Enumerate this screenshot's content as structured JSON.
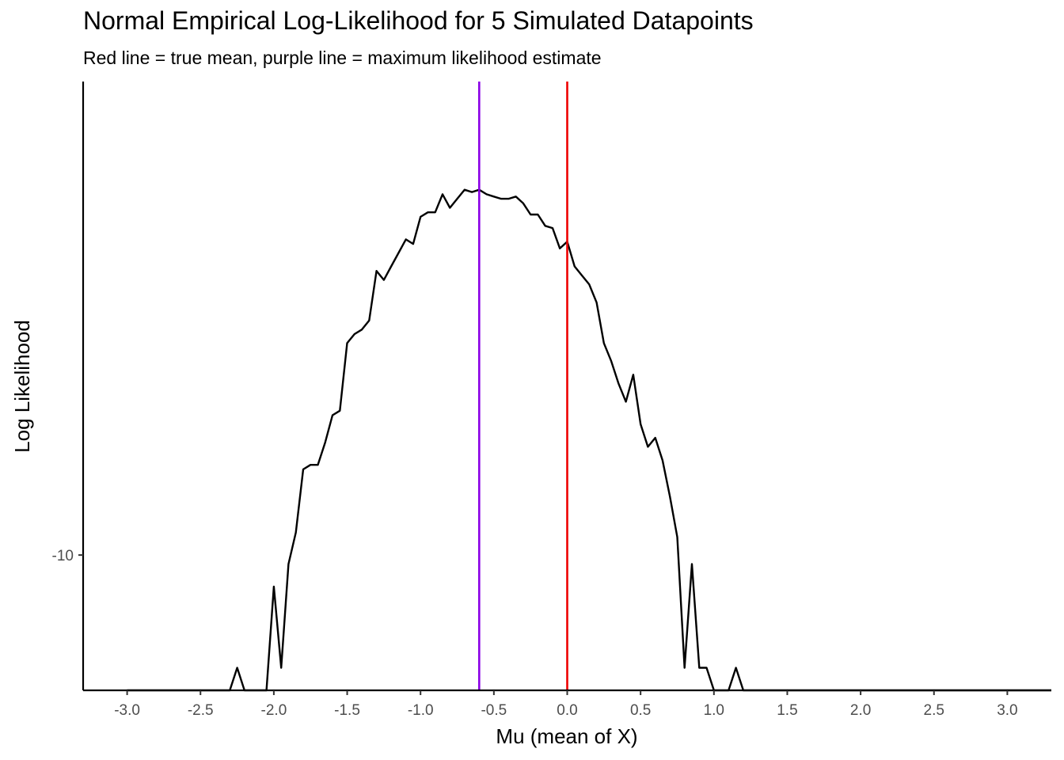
{
  "chart_data": {
    "type": "line",
    "title": "Normal Empirical Log-Likelihood for 5 Simulated Datapoints",
    "subtitle": "Red line = true mean, purple line = maximum likelihood estimate",
    "xlabel": "Mu (mean of X)",
    "ylabel": "Log Likelihood",
    "xlim": [
      -3.3,
      3.3
    ],
    "ylim": [
      -10.3,
      -8.95
    ],
    "x_ticks": [
      "-3.0",
      "-2.5",
      "-2.0",
      "-1.5",
      "-1.0",
      "-0.5",
      "0.0",
      "0.5",
      "1.0",
      "1.5",
      "2.0",
      "2.5",
      "3.0"
    ],
    "x_tick_values": [
      -3.0,
      -2.5,
      -2.0,
      -1.5,
      -1.0,
      -0.5,
      0.0,
      0.5,
      1.0,
      1.5,
      2.0,
      2.5,
      3.0
    ],
    "y_ticks": [
      "-10"
    ],
    "y_tick_values": [
      -10
    ],
    "grid": false,
    "reference_lines": [
      {
        "x": 0.0,
        "color": "#ee0000"
      },
      {
        "x": -0.6,
        "color": "#8a00e6"
      }
    ],
    "series": [
      {
        "color": "#000000",
        "x": [
          -3.0,
          -2.3,
          -2.25,
          -2.2,
          -2.05,
          -2.0,
          -1.95,
          -1.9,
          -1.85,
          -1.8,
          -1.75,
          -1.7,
          -1.65,
          -1.6,
          -1.55,
          -1.5,
          -1.45,
          -1.4,
          -1.35,
          -1.3,
          -1.25,
          -1.2,
          -1.15,
          -1.1,
          -1.05,
          -1.0,
          -0.95,
          -0.9,
          -0.85,
          -0.8,
          -0.75,
          -0.7,
          -0.65,
          -0.6,
          -0.55,
          -0.5,
          -0.45,
          -0.4,
          -0.35,
          -0.3,
          -0.25,
          -0.2,
          -0.15,
          -0.1,
          -0.05,
          0.0,
          0.05,
          0.1,
          0.15,
          0.2,
          0.25,
          0.3,
          0.35,
          0.4,
          0.45,
          0.5,
          0.55,
          0.6,
          0.65,
          0.7,
          0.75,
          0.8,
          0.85,
          0.9,
          0.95,
          1.0,
          1.05,
          1.1,
          1.15,
          1.2,
          1.25,
          3.3
        ],
        "y": [
          -10.3,
          -10.3,
          -10.25,
          -10.3,
          -10.3,
          -10.07,
          -10.25,
          -10.02,
          -9.95,
          -9.81,
          -9.8,
          -9.8,
          -9.75,
          -9.69,
          -9.68,
          -9.53,
          -9.51,
          -9.5,
          -9.48,
          -9.37,
          -9.39,
          -9.36,
          -9.33,
          -9.3,
          -9.31,
          -9.25,
          -9.24,
          -9.24,
          -9.2,
          -9.23,
          -9.21,
          -9.19,
          -9.195,
          -9.19,
          -9.2,
          -9.205,
          -9.21,
          -9.21,
          -9.205,
          -9.22,
          -9.245,
          -9.245,
          -9.27,
          -9.275,
          -9.32,
          -9.305,
          -9.36,
          -9.38,
          -9.4,
          -9.44,
          -9.53,
          -9.57,
          -9.62,
          -9.66,
          -9.6,
          -9.71,
          -9.76,
          -9.74,
          -9.79,
          -9.87,
          -9.96,
          -10.25,
          -10.02,
          -10.25,
          -10.25,
          -10.3,
          -10.3,
          -10.3,
          -10.25,
          -10.3,
          -10.3,
          -10.3
        ]
      }
    ]
  }
}
